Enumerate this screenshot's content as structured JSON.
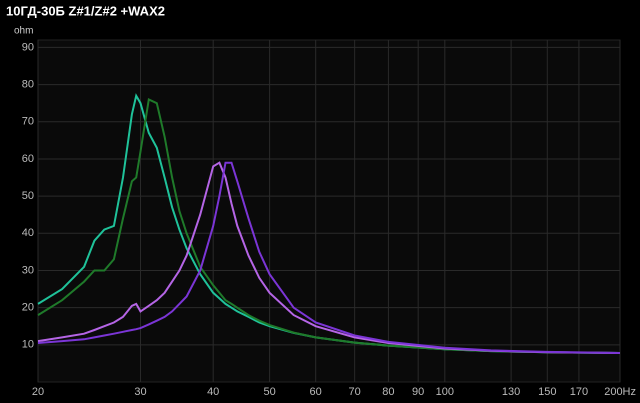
{
  "chart_data": {
    "type": "line",
    "title": "10ГД-30Б Z#1/Z#2 +WAX2",
    "y_label": "ohm",
    "log_x": true,
    "grid": true,
    "x": [
      20,
      22,
      24,
      25,
      26,
      27,
      28,
      29,
      29.5,
      30,
      31,
      32,
      33,
      34,
      35,
      36,
      38,
      40,
      41,
      42,
      43,
      44,
      46,
      48,
      50,
      55,
      60,
      70,
      80,
      100,
      120,
      150,
      200
    ],
    "series": [
      {
        "color": "#1fc29a",
        "values": [
          21,
          25,
          31,
          38,
          41,
          42,
          55,
          72,
          77,
          75,
          67,
          63,
          55,
          47,
          41,
          36,
          29,
          24,
          22.5,
          21,
          20,
          19,
          17.5,
          16,
          15,
          13.2,
          12,
          10.6,
          9.8,
          8.8,
          8.3,
          8,
          7.8
        ]
      },
      {
        "color": "#1f7a2a",
        "values": [
          18,
          22,
          27,
          30,
          30,
          33,
          44,
          54,
          55,
          62,
          76,
          75,
          66,
          55,
          46,
          40,
          31,
          26,
          24,
          22,
          21,
          20,
          18,
          16.5,
          15.3,
          13.3,
          12,
          10.6,
          9.8,
          8.8,
          8.3,
          8,
          7.8
        ]
      },
      {
        "color": "#b565e6",
        "values": [
          11,
          12,
          13,
          14,
          15,
          16,
          17.5,
          20.5,
          21,
          19,
          20.5,
          22,
          24,
          27,
          30,
          34,
          45,
          58,
          59,
          55,
          48,
          42,
          34,
          28,
          24,
          18,
          15,
          12,
          10.5,
          9,
          8.4,
          8,
          7.8
        ]
      },
      {
        "color": "#7b35d6",
        "values": [
          10.5,
          11,
          11.5,
          12,
          12.5,
          13,
          13.5,
          14,
          14.2,
          14.5,
          15.5,
          16.5,
          17.5,
          19,
          21,
          23,
          30,
          42,
          50,
          59,
          59,
          54,
          44,
          35,
          29,
          20,
          16,
          12.5,
          10.8,
          9.2,
          8.5,
          8.1,
          7.8
        ]
      }
    ],
    "xlim": [
      20,
      200
    ],
    "xticks": [
      20,
      30,
      40,
      50,
      60,
      70,
      80,
      90,
      100,
      130,
      150,
      170,
      {
        "value": 200,
        "label": "200Hz"
      }
    ],
    "ylim": [
      0,
      92
    ],
    "yticks": [
      10,
      20,
      30,
      40,
      50,
      60,
      70,
      80,
      90
    ]
  }
}
